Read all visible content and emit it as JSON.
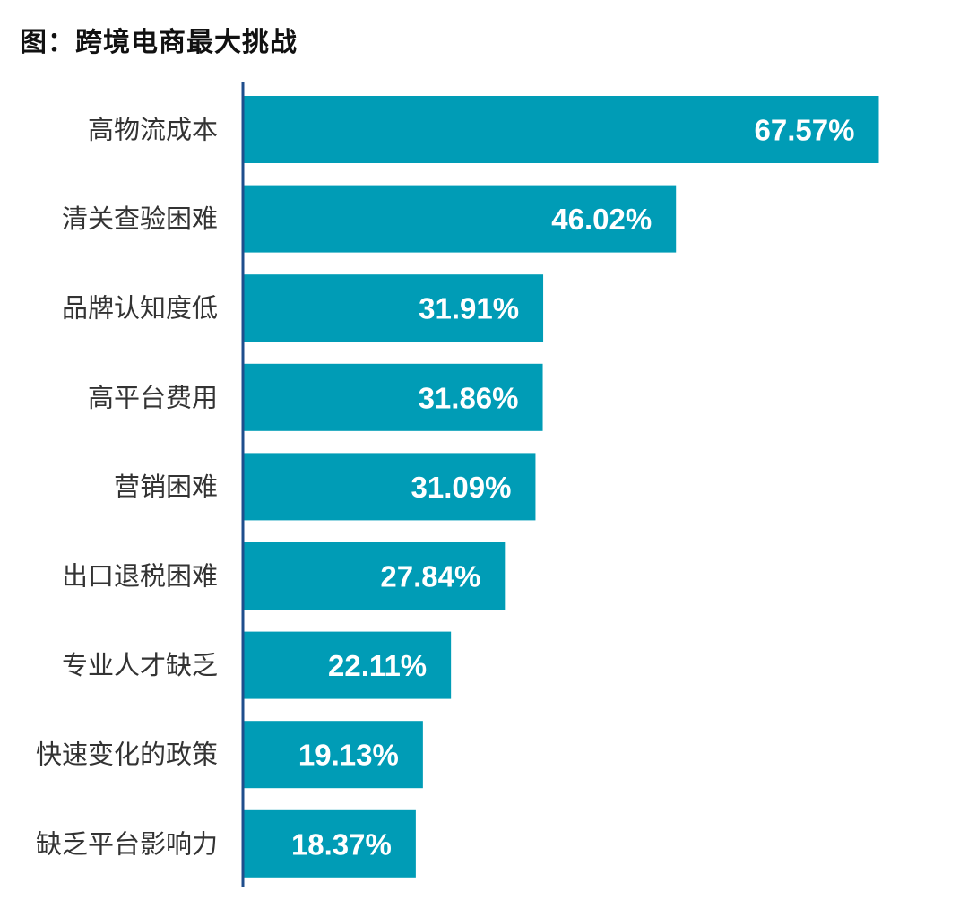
{
  "title": "图：跨境电商最大挑战",
  "colors": {
    "bar": "#009CB6",
    "axis": "#1F4E8C",
    "label_text": "#333333",
    "value_text": "#FFFFFF"
  },
  "chart_data": {
    "type": "bar",
    "orientation": "horizontal",
    "title": "图：跨境电商最大挑战",
    "xlabel": "",
    "ylabel": "",
    "xlim": [
      0,
      72
    ],
    "grid": false,
    "legend": "none",
    "categories": [
      "高物流成本",
      "清关查验困难",
      "品牌认知度低",
      "高平台费用",
      "营销困难",
      "出口退税困难",
      "专业人才缺乏",
      "快速变化的政策",
      "缺乏平台影响力"
    ],
    "values": [
      67.57,
      46.02,
      31.91,
      31.86,
      31.09,
      27.84,
      22.11,
      19.13,
      18.37
    ],
    "value_labels": [
      "67.57%",
      "46.02%",
      "31.91%",
      "31.86%",
      "31.09%",
      "27.84%",
      "22.11%",
      "19.13%",
      "18.37%"
    ]
  }
}
